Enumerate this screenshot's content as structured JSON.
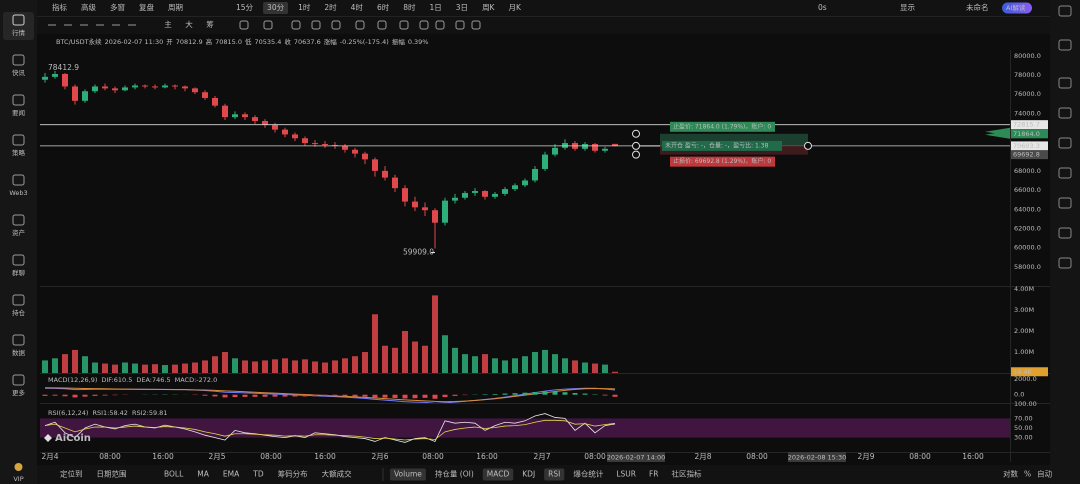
{
  "sidebar": {
    "items": [
      "行情",
      "快讯",
      "要闻",
      "策略",
      "Web3",
      "资产",
      "群聊",
      "持仓",
      "数据",
      "更多"
    ],
    "vip": "VIP"
  },
  "toolbar": {
    "left": [
      "指标",
      "高级",
      "多窗",
      "复盘",
      "周期"
    ],
    "periods": [
      "15分",
      "30分",
      "1时",
      "2时",
      "4时",
      "6时",
      "8时",
      "1日",
      "3日",
      "周K",
      "月K"
    ],
    "active_period": 1,
    "right": [
      "0s",
      "显示",
      "未命名",
      "AI解读"
    ]
  },
  "drawing_toolbar": [
    "主",
    "大",
    "筹"
  ],
  "info_bar": [
    "BTC/USDT永续",
    "2026-02-07 11:30",
    "开",
    "70812.9",
    "高",
    "70815.0",
    "低",
    "70535.4",
    "收",
    "70637.6",
    "涨幅",
    "-0.25%(-175.4)",
    "振幅",
    "0.39%"
  ],
  "orders": {
    "take_profit": "止盈价: 71864.0 (1.79%)，账户: 0",
    "position": "未开仓 盈亏: -，仓量: -，盈亏比: 1.38",
    "stop_loss": "止损价: 69692.8 (1.29%)，账户: 0"
  },
  "watermark": "AiCoin",
  "bottom_bar": {
    "left": [
      "定位到",
      "日期范围"
    ],
    "main_indicators": [
      "BOLL",
      "MA",
      "EMA",
      "TD",
      "筹码分布",
      "大额成交"
    ],
    "sub_indicators": [
      "Volume",
      "持仓量 (OI)",
      "MACD",
      "KDJ",
      "RSI",
      "爆仓统计",
      "LSUR",
      "FR",
      "社区指标"
    ],
    "active_sub": [
      0,
      2,
      4
    ],
    "right": [
      "对数",
      "%",
      "自动"
    ]
  },
  "chart_data": [
    {
      "type": "candlestick",
      "up_color": "#2eae7a",
      "down_color": "#e0484c",
      "x": [
        0,
        1,
        2,
        3,
        4,
        5,
        6,
        7,
        8,
        9,
        10,
        11,
        12,
        13,
        14,
        15,
        16,
        17,
        18,
        19,
        20,
        21,
        22,
        23,
        24,
        25,
        26,
        27,
        28,
        29,
        30,
        31,
        32,
        33,
        34,
        35,
        36,
        37,
        38,
        39,
        40,
        41,
        42,
        43,
        44,
        45,
        46,
        47,
        48,
        49,
        50,
        51,
        52,
        53,
        54,
        55,
        56,
        57
      ],
      "open": [
        77500,
        77800,
        78100,
        76800,
        75300,
        76300,
        76800,
        76600,
        76400,
        76700,
        76900,
        76800,
        76700,
        76900,
        76800,
        76600,
        76200,
        75600,
        74800,
        73600,
        73900,
        73600,
        73200,
        72800,
        72300,
        71800,
        71400,
        70900,
        70800,
        70700,
        70600,
        70200,
        69800,
        69200,
        68000,
        67300,
        66200,
        64800,
        64200,
        63900,
        62600,
        64900,
        65200,
        65700,
        65900,
        65300,
        65600,
        66100,
        66500,
        67000,
        68200,
        69700,
        70400,
        70900,
        70300,
        70800,
        70100,
        70812.9
      ],
      "high": [
        78200,
        78412.9,
        78200,
        77000,
        76500,
        77000,
        77100,
        76800,
        76900,
        77100,
        77000,
        77000,
        77100,
        77000,
        76900,
        76700,
        76400,
        75800,
        75000,
        74200,
        74100,
        73800,
        73400,
        73000,
        72500,
        72000,
        71600,
        71200,
        71100,
        71000,
        70800,
        70400,
        70000,
        69400,
        68500,
        67600,
        66500,
        65300,
        64700,
        64100,
        65200,
        65600,
        65900,
        66200,
        66000,
        65800,
        66300,
        66700,
        67200,
        68500,
        70000,
        70800,
        71300,
        71100,
        71000,
        70900,
        70500,
        70815
      ],
      "low": [
        77200,
        77600,
        76500,
        74900,
        75100,
        76100,
        76400,
        76100,
        76300,
        76500,
        76600,
        76500,
        76600,
        76500,
        76300,
        76000,
        75400,
        74600,
        73300,
        73400,
        73300,
        72900,
        72500,
        72000,
        71500,
        71100,
        70600,
        70500,
        70400,
        70300,
        69900,
        69400,
        68700,
        67400,
        67000,
        65800,
        64300,
        63800,
        63300,
        59909,
        62300,
        64600,
        65000,
        65400,
        65000,
        65100,
        65400,
        65900,
        66300,
        66800,
        68000,
        69500,
        70200,
        70100,
        70100,
        69900,
        69900,
        70535.4
      ],
      "close": [
        77800,
        78100,
        76800,
        75300,
        76300,
        76800,
        76600,
        76400,
        76700,
        76900,
        76800,
        76700,
        76900,
        76800,
        76600,
        76200,
        75600,
        74800,
        73600,
        73900,
        73600,
        73200,
        72800,
        72300,
        71800,
        71400,
        70900,
        70800,
        70700,
        70600,
        70200,
        69800,
        69200,
        68000,
        67300,
        66200,
        64800,
        64200,
        63900,
        62600,
        64900,
        65200,
        65700,
        65900,
        65300,
        65600,
        66100,
        66500,
        67000,
        68200,
        69700,
        70400,
        70900,
        70300,
        70800,
        70100,
        70300,
        70637.6
      ],
      "max_label": "78412.9",
      "min_label": "59909.0",
      "xlim": [
        -0.5,
        96.5
      ],
      "xticks": [
        {
          "value": 0.5,
          "label": "2月4"
        },
        {
          "value": 6.5,
          "label": "08:00"
        },
        {
          "value": 11.8,
          "label": "16:00"
        },
        {
          "value": 17.2,
          "label": "2月5"
        },
        {
          "value": 22.6,
          "label": "08:00"
        },
        {
          "value": 28,
          "label": "16:00"
        },
        {
          "value": 33.5,
          "label": "2月6"
        },
        {
          "value": 38.8,
          "label": "08:00"
        },
        {
          "value": 44.2,
          "label": "16:00"
        },
        {
          "value": 49.7,
          "label": "2月7"
        },
        {
          "value": 55,
          "label": "08:00"
        },
        {
          "value": 65.8,
          "label": "2月8"
        },
        {
          "value": 71.2,
          "label": "08:00"
        },
        {
          "value": 82.1,
          "label": "2月9"
        },
        {
          "value": 87.5,
          "label": "08:00"
        },
        {
          "value": 92.8,
          "label": "16:00"
        }
      ],
      "x_markers": [
        {
          "value": 59.1,
          "label": "2026-02-07 14:00"
        },
        {
          "value": 77.2,
          "label": "2026-02-08 15:30"
        }
      ],
      "ylim": [
        56000,
        80600
      ],
      "yticks": [
        {
          "value": 80000,
          "label": "80000.0"
        },
        {
          "value": 78000,
          "label": "78000.0"
        },
        {
          "value": 76000,
          "label": "76000.0"
        },
        {
          "value": 74000,
          "label": "74000.0"
        },
        {
          "value": 68000,
          "label": "68000.0"
        },
        {
          "value": 66000,
          "label": "66000.0"
        },
        {
          "value": 64000,
          "label": "64000.0"
        },
        {
          "value": 62000,
          "label": "62000.0"
        },
        {
          "value": 60000,
          "label": "60000.0"
        },
        {
          "value": 58000,
          "label": "58000.0"
        }
      ],
      "price_tags": [
        {
          "value": 72815.7,
          "color": "#e6e6e6",
          "line": true
        },
        {
          "value": 71864,
          "label": "71864.0",
          "color": "#2e8b57"
        },
        {
          "value": 70603.3,
          "color": "#e6e6e6",
          "line": true
        },
        {
          "value": 69692.8,
          "color": "#4a4a4a"
        }
      ]
    },
    {
      "type": "bar",
      "ylim": [
        0,
        4100000
      ],
      "yticks": [
        {
          "value": 4000000,
          "label": "4.00M"
        },
        {
          "value": 3000000,
          "label": "3.00M"
        },
        {
          "value": 2000000,
          "label": "2.00M"
        },
        {
          "value": 1000000,
          "label": "1.00M"
        }
      ],
      "values": [
        600000,
        700000,
        900000,
        1100000,
        800000,
        500000,
        450000,
        400000,
        500000,
        450000,
        400000,
        420000,
        380000,
        400000,
        450000,
        500000,
        600000,
        800000,
        1000000,
        700000,
        600000,
        550000,
        600000,
        650000,
        700000,
        600000,
        650000,
        550000,
        500000,
        600000,
        700000,
        800000,
        1000000,
        2800000,
        1300000,
        1200000,
        2000000,
        1500000,
        1300000,
        3700000,
        1800000,
        1200000,
        900000,
        800000,
        900000,
        700000,
        600000,
        700000,
        800000,
        1000000,
        1100000,
        900000,
        700000,
        600000,
        500000,
        450000,
        400000,
        59400
      ],
      "value_labels": [
        null,
        null,
        null,
        null,
        null,
        null,
        null,
        null,
        null,
        null,
        null,
        null,
        null,
        null,
        null,
        null,
        null,
        null,
        null,
        null,
        null,
        null,
        null,
        null,
        null,
        null,
        null,
        null,
        null,
        null,
        null,
        null,
        null,
        null,
        null,
        null,
        null,
        null,
        null,
        null,
        null,
        null,
        null,
        null,
        null,
        null,
        null,
        null,
        null,
        null,
        null,
        null,
        null,
        null,
        null,
        null,
        null,
        "59.4K"
      ]
    },
    {
      "type": "macd",
      "title": "MACD(12,26,9)",
      "ylim": [
        -1067,
        2667
      ],
      "yticks": [
        {
          "value": 2000,
          "label": "2000.0"
        },
        {
          "value": 0,
          "label": "0.0"
        }
      ],
      "series": [
        {
          "name": "DIF:610.5",
          "color": "#6f7cff",
          "values": [
            825,
            820,
            760,
            655,
            675,
            705,
            710,
            710,
            705,
            700,
            700,
            695,
            690,
            675,
            655,
            610,
            540,
            450,
            325,
            290,
            240,
            185,
            130,
            75,
            20,
            -35,
            -90,
            -140,
            -190,
            -245,
            -315,
            -390,
            -470,
            -595,
            -690,
            -790,
            -900,
            -955,
            -990,
            -1120,
            -1050,
            -955,
            -845,
            -725,
            -610,
            -475,
            -305,
            -120,
            70,
            275,
            470,
            620,
            720,
            790,
            835,
            825,
            740,
            610.5
          ]
        },
        {
          "name": "DEA:746.5",
          "color": "#d98a3a",
          "values": [
            900,
            880,
            860,
            830,
            800,
            780,
            760,
            740,
            720,
            700,
            690,
            680,
            670,
            660,
            650,
            630,
            600,
            560,
            500,
            440,
            380,
            320,
            260,
            200,
            140,
            80,
            20,
            -40,
            -100,
            -160,
            -220,
            -280,
            -340,
            -420,
            -500,
            -580,
            -660,
            -730,
            -790,
            -860,
            -900,
            -880,
            -820,
            -740,
            -640,
            -520,
            -380,
            -220,
            -60,
            100,
            260,
            420,
            560,
            680,
            760,
            800,
            790,
            746.5
          ]
        },
        {
          "name": "MACD:-272.0",
          "style": "bar",
          "color": "#2eae7a",
          "neg_color": "#e0484c",
          "values": [
            -150,
            -120,
            -200,
            -350,
            -250,
            -150,
            -100,
            -60,
            -30,
            0,
            20,
            30,
            40,
            30,
            10,
            -40,
            -120,
            -220,
            -350,
            -300,
            -280,
            -270,
            -260,
            -250,
            -240,
            -230,
            -220,
            -200,
            -180,
            -170,
            -190,
            -220,
            -260,
            -350,
            -380,
            -420,
            -480,
            -450,
            -400,
            -520,
            -300,
            -150,
            -50,
            30,
            60,
            90,
            150,
            200,
            260,
            350,
            420,
            400,
            320,
            220,
            150,
            50,
            -100,
            -272
          ]
        }
      ]
    },
    {
      "type": "line",
      "title": "RSI(6,12,24)",
      "ylim": [
        0,
        100
      ],
      "band": [
        30,
        70
      ],
      "yticks": [
        {
          "value": 100,
          "label": "100.00"
        },
        {
          "value": 70,
          "label": "70.00"
        },
        {
          "value": 50,
          "label": "50.00"
        },
        {
          "value": 30,
          "label": "30.00"
        }
      ],
      "series": [
        {
          "name": "RSI1:58.42",
          "color": "#e8e8e8",
          "values": [
            55,
            62,
            40,
            30,
            50,
            58,
            52,
            48,
            55,
            58,
            52,
            50,
            56,
            52,
            48,
            42,
            35,
            30,
            25,
            45,
            40,
            38,
            35,
            32,
            30,
            34,
            30,
            40,
            38,
            36,
            32,
            30,
            28,
            22,
            30,
            25,
            20,
            28,
            30,
            22,
            65,
            60,
            62,
            60,
            45,
            55,
            62,
            60,
            65,
            75,
            80,
            72,
            70,
            45,
            60,
            40,
            55,
            58.42
          ]
        },
        {
          "name": "RSI2:59.81",
          "color": "#e6d44a",
          "values": [
            55,
            58,
            50,
            42,
            48,
            52,
            52,
            50,
            52,
            54,
            52,
            51,
            53,
            52,
            50,
            47,
            42,
            38,
            33,
            38,
            38,
            37,
            36,
            35,
            33,
            34,
            33,
            36,
            36,
            35,
            34,
            33,
            31,
            28,
            29,
            27,
            25,
            27,
            28,
            26,
            42,
            47,
            50,
            52,
            49,
            51,
            54,
            55,
            57,
            62,
            66,
            66,
            65,
            58,
            59,
            54,
            57,
            59.81
          ]
        }
      ]
    }
  ]
}
